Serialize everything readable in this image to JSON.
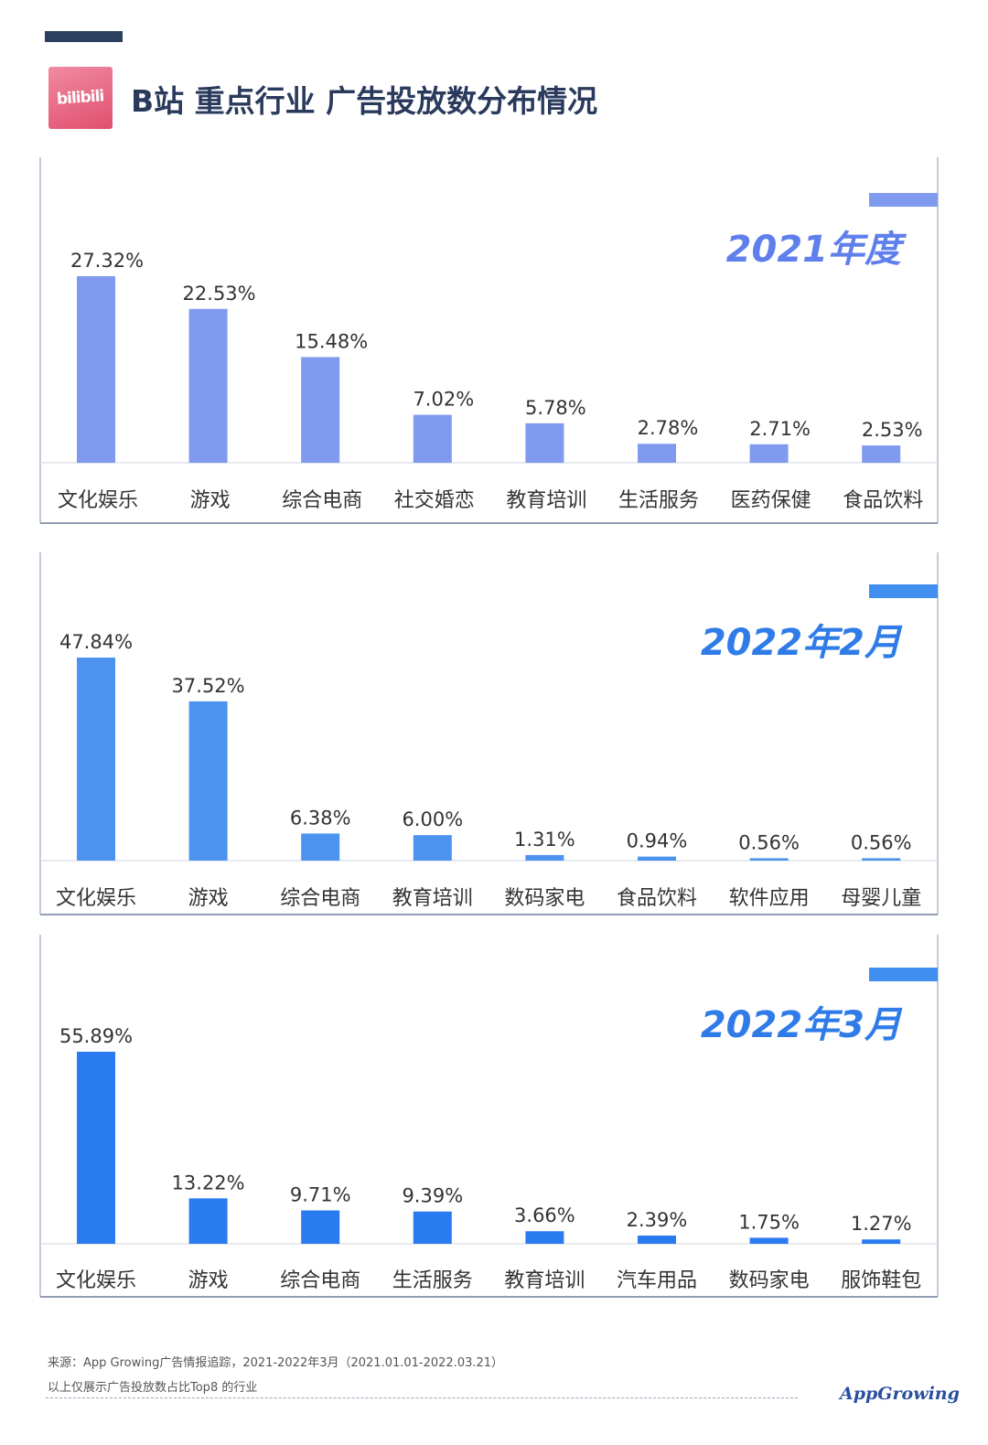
{
  "header": {
    "logo_text": "bilibili",
    "title": "B站 重点行业 广告投放数分布情况"
  },
  "colors": {
    "panel_2021": "#7f9aef",
    "panel_2022_02": "#4b93ef",
    "panel_2022_03": "#2a7af0",
    "panel_border": "#b0b9cc",
    "accent_tab_2021": "#7f9aef",
    "accent_tab_2022": "#3f8ef0"
  },
  "chart_data": [
    {
      "type": "bar",
      "period_label": "2021年度",
      "categories": [
        "文化娱乐",
        "游戏",
        "综合电商",
        "社交婚恋",
        "教育培训",
        "生活服务",
        "医药保健",
        "食品饮料"
      ],
      "values": [
        27.32,
        22.53,
        15.48,
        7.02,
        5.78,
        2.78,
        2.71,
        2.53
      ],
      "value_labels": [
        "27.32%",
        "22.53%",
        "15.48%",
        "7.02%",
        "5.78%",
        "2.78%",
        "2.71%",
        "2.53%"
      ],
      "title": "",
      "xlabel": "",
      "ylabel": "",
      "ylim": [
        0,
        27.32
      ]
    },
    {
      "type": "bar",
      "period_label": "2022年2月",
      "categories": [
        "文化娱乐",
        "游戏",
        "综合电商",
        "教育培训",
        "数码家电",
        "食品饮料",
        "软件应用",
        "母婴儿童"
      ],
      "values": [
        47.84,
        37.52,
        6.38,
        6.0,
        1.31,
        0.94,
        0.56,
        0.56
      ],
      "value_labels": [
        "47.84%",
        "37.52%",
        "6.38%",
        "6.00%",
        "1.31%",
        "0.94%",
        "0.56%",
        "0.56%"
      ],
      "title": "",
      "xlabel": "",
      "ylabel": "",
      "ylim": [
        0,
        47.84
      ]
    },
    {
      "type": "bar",
      "period_label": "2022年3月",
      "categories": [
        "文化娱乐",
        "游戏",
        "综合电商",
        "生活服务",
        "教育培训",
        "汽车用品",
        "数码家电",
        "服饰鞋包"
      ],
      "values": [
        55.89,
        13.22,
        9.71,
        9.39,
        3.66,
        2.39,
        1.75,
        1.27
      ],
      "value_labels": [
        "55.89%",
        "13.22%",
        "9.71%",
        "9.39%",
        "3.66%",
        "2.39%",
        "1.75%",
        "1.27%"
      ],
      "title": "",
      "xlabel": "",
      "ylabel": "",
      "ylim": [
        0,
        55.89
      ]
    }
  ],
  "footer": {
    "source": "来源：App Growing广告情报追踪，2021-2022年3月（2021.01.01-2022.03.21）",
    "note": "以上仅展示广告投放数占比Top8 的行业",
    "brand": "AppGrowing"
  }
}
